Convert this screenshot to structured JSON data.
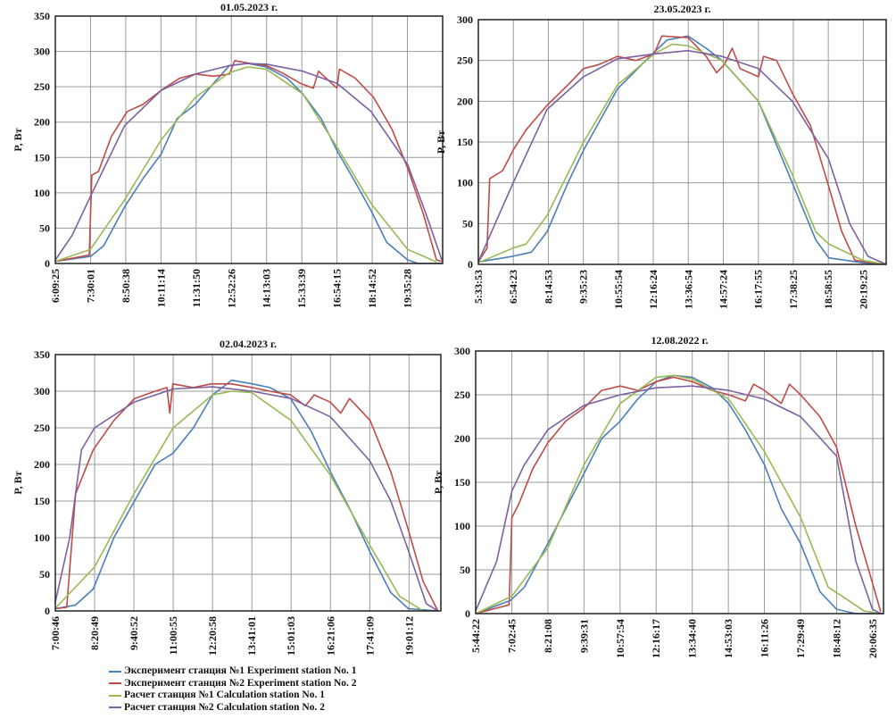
{
  "colors": {
    "exp1": "#4a7ebb",
    "exp2": "#be4b48",
    "calc1": "#98b954",
    "calc2": "#7d60a0"
  },
  "legend": [
    {
      "key": "exp1",
      "label": "Эксперимент станция №1 Experiment station No. 1"
    },
    {
      "key": "exp2",
      "label": "Эксперимент станция №2 Experiment station No. 2"
    },
    {
      "key": "calc1",
      "label": "Расчет станция №1 Calculation station No. 1"
    },
    {
      "key": "calc2",
      "label": "Расчет станция №2 Calculation station No. 2"
    }
  ],
  "chart_data": [
    {
      "type": "line",
      "title": "01.05.2023 г.",
      "xlabel": "",
      "ylabel": "P, Вт",
      "ylim": [
        0,
        350
      ],
      "yticks": [
        0,
        50,
        100,
        150,
        200,
        250,
        300,
        350
      ],
      "grid": true,
      "xlim_hours": [
        6.157,
        20.935
      ],
      "xtick_labels": [
        "6:09:25",
        "7:30:01",
        "8:50:38",
        "10:11:14",
        "11:31:50",
        "12:52:26",
        "14:13:03",
        "15:33:39",
        "16:54:15",
        "18:14:52",
        "19:35:28"
      ],
      "xtick_hours": [
        6.157,
        7.5,
        8.844,
        10.187,
        11.531,
        12.874,
        14.218,
        15.561,
        16.904,
        18.248,
        19.591
      ],
      "series": [
        {
          "key": "exp1",
          "x": [
            6.16,
            7.5,
            8.0,
            8.8,
            9.5,
            10.2,
            10.8,
            11.5,
            12.2,
            12.8,
            13.5,
            14.2,
            15.0,
            15.6,
            16.3,
            16.9,
            17.6,
            18.2,
            18.8,
            19.6,
            20.0,
            20.9
          ],
          "y": [
            3,
            10,
            25,
            80,
            120,
            155,
            205,
            225,
            255,
            280,
            283,
            278,
            262,
            240,
            205,
            160,
            115,
            75,
            30,
            5,
            0,
            0
          ]
        },
        {
          "key": "exp2",
          "x": [
            6.16,
            7.45,
            7.55,
            7.8,
            8.3,
            8.9,
            9.5,
            10.2,
            10.9,
            11.5,
            12.2,
            12.8,
            13.0,
            13.6,
            14.2,
            14.8,
            15.5,
            16.0,
            16.2,
            16.9,
            17.0,
            17.6,
            18.3,
            19.0,
            19.6,
            20.2,
            20.7,
            20.9
          ],
          "y": [
            3,
            12,
            125,
            130,
            180,
            215,
            225,
            245,
            262,
            268,
            265,
            268,
            287,
            283,
            280,
            270,
            255,
            248,
            272,
            248,
            275,
            262,
            235,
            190,
            135,
            70,
            5,
            3
          ]
        },
        {
          "key": "calc1",
          "x": [
            6.16,
            7.5,
            8.8,
            10.2,
            11.5,
            12.8,
            13.5,
            14.2,
            15.6,
            16.9,
            18.2,
            19.6,
            20.7
          ],
          "y": [
            3,
            20,
            90,
            175,
            235,
            270,
            278,
            275,
            240,
            165,
            85,
            20,
            2
          ]
        },
        {
          "key": "calc2",
          "x": [
            6.16,
            6.8,
            7.5,
            8.8,
            10.2,
            11.5,
            12.8,
            13.5,
            14.2,
            15.6,
            16.9,
            18.2,
            19.6,
            20.3,
            20.9
          ],
          "y": [
            5,
            40,
            95,
            195,
            245,
            268,
            280,
            283,
            282,
            272,
            255,
            215,
            140,
            70,
            5
          ]
        }
      ]
    },
    {
      "type": "line",
      "title": "23.05.2023 г.",
      "xlabel": "",
      "ylabel": "P, Вт",
      "ylim": [
        0,
        300
      ],
      "yticks": [
        0,
        50,
        100,
        150,
        200,
        250,
        300
      ],
      "grid": true,
      "xlim_hours": [
        5.565,
        21.2
      ],
      "xtick_labels": [
        "5:33:53",
        "6:54:23",
        "8:14:53",
        "9:35:23",
        "10:55:54",
        "12:16:24",
        "13:36:54",
        "14:57:24",
        "16:17:55",
        "17:38:25",
        "18:58:55",
        "20:19:25"
      ],
      "xtick_hours": [
        5.565,
        6.906,
        8.248,
        9.59,
        10.932,
        12.273,
        13.615,
        14.957,
        16.299,
        17.64,
        18.982,
        20.324
      ],
      "series": [
        {
          "key": "exp1",
          "x": [
            5.56,
            6.9,
            7.6,
            8.2,
            9.0,
            9.6,
            10.9,
            12.3,
            12.8,
            13.6,
            14.3,
            14.9,
            16.3,
            17.6,
            18.5,
            19.0,
            20.3,
            21.2
          ],
          "y": [
            3,
            10,
            15,
            40,
            100,
            140,
            215,
            260,
            275,
            280,
            265,
            250,
            200,
            100,
            30,
            8,
            2,
            0
          ]
        },
        {
          "key": "exp2",
          "x": [
            5.56,
            5.9,
            6.0,
            6.5,
            6.9,
            7.4,
            8.2,
            9.0,
            9.6,
            10.2,
            10.9,
            11.6,
            12.3,
            12.6,
            13.6,
            14.3,
            14.7,
            15.0,
            15.3,
            15.6,
            16.3,
            16.5,
            17.0,
            17.6,
            18.3,
            19.0,
            19.5,
            20.0,
            21.2
          ],
          "y": [
            3,
            20,
            105,
            115,
            140,
            165,
            195,
            220,
            240,
            245,
            255,
            250,
            258,
            280,
            278,
            255,
            235,
            245,
            265,
            240,
            230,
            255,
            250,
            210,
            170,
            95,
            40,
            5,
            0
          ]
        },
        {
          "key": "calc1",
          "x": [
            5.56,
            6.9,
            7.4,
            8.2,
            9.6,
            10.9,
            12.3,
            13.0,
            13.6,
            14.9,
            16.3,
            17.6,
            18.5,
            19.0,
            20.3,
            21.2
          ],
          "y": [
            2,
            20,
            25,
            60,
            150,
            220,
            258,
            270,
            268,
            250,
            200,
            110,
            40,
            25,
            5,
            0
          ]
        },
        {
          "key": "calc2",
          "x": [
            5.56,
            6.9,
            8.2,
            9.6,
            10.9,
            12.3,
            13.6,
            14.9,
            16.3,
            17.6,
            18.98,
            19.8,
            20.5,
            21.2
          ],
          "y": [
            3,
            100,
            190,
            230,
            252,
            258,
            262,
            255,
            240,
            200,
            130,
            50,
            10,
            0
          ]
        }
      ]
    },
    {
      "type": "line",
      "title": "02.04.2023 г.",
      "xlabel": "",
      "ylabel": "P, Вт",
      "ylim": [
        0,
        350
      ],
      "yticks": [
        0,
        50,
        100,
        150,
        200,
        250,
        300,
        350
      ],
      "grid": true,
      "xlim_hours": [
        7.013,
        20.1
      ],
      "xtick_labels": [
        "7:00:46",
        "8:20:49",
        "9:40:52",
        "11:00:55",
        "12:20:58",
        "13:41:01",
        "15:01:03",
        "16:21:06",
        "17:41:09",
        "19:01:12"
      ],
      "xtick_hours": [
        7.013,
        8.347,
        9.681,
        11.015,
        12.349,
        13.684,
        15.018,
        16.352,
        17.686,
        19.02
      ],
      "series": [
        {
          "key": "exp1",
          "x": [
            7.0,
            7.7,
            8.3,
            9.0,
            9.7,
            10.4,
            11.0,
            11.7,
            12.35,
            13.0,
            13.7,
            14.3,
            15.0,
            15.7,
            16.35,
            17.0,
            17.7,
            18.4,
            19.0,
            20.0
          ],
          "y": [
            3,
            8,
            30,
            100,
            150,
            200,
            215,
            250,
            295,
            315,
            310,
            305,
            290,
            245,
            190,
            140,
            80,
            25,
            3,
            0
          ]
        },
        {
          "key": "exp2",
          "x": [
            7.0,
            7.4,
            7.7,
            8.3,
            9.0,
            9.7,
            10.4,
            10.8,
            10.9,
            11.0,
            11.7,
            12.3,
            13.0,
            13.7,
            14.3,
            15.0,
            15.5,
            15.8,
            16.35,
            16.7,
            17.0,
            17.7,
            18.4,
            19.0,
            19.5,
            20.0
          ],
          "y": [
            3,
            5,
            160,
            220,
            260,
            290,
            300,
            305,
            270,
            310,
            305,
            310,
            310,
            305,
            300,
            295,
            280,
            295,
            285,
            270,
            290,
            260,
            190,
            110,
            40,
            0
          ]
        },
        {
          "key": "calc1",
          "x": [
            7.0,
            8.347,
            9.681,
            11.015,
            12.35,
            13.0,
            13.684,
            15.018,
            16.352,
            17.686,
            18.7,
            19.5
          ],
          "y": [
            3,
            60,
            160,
            250,
            295,
            300,
            298,
            260,
            185,
            90,
            20,
            0
          ]
        },
        {
          "key": "calc2",
          "x": [
            7.0,
            7.5,
            7.9,
            8.347,
            9.681,
            11.015,
            12.35,
            13.684,
            15.018,
            16.352,
            17.686,
            18.4,
            19.02,
            19.6,
            20.0
          ],
          "y": [
            10,
            100,
            220,
            250,
            285,
            303,
            306,
            300,
            290,
            265,
            205,
            150,
            80,
            10,
            0
          ]
        }
      ]
    },
    {
      "type": "line",
      "title": "12.08.2022 г.",
      "xlabel": "",
      "ylabel": "P, Вт",
      "ylim": [
        0,
        300
      ],
      "yticks": [
        0,
        50,
        100,
        150,
        200,
        250,
        300
      ],
      "grid": true,
      "xlim_hours": [
        5.739,
        20.5
      ],
      "xtick_labels": [
        "5:44:22",
        "7:02:45",
        "8:21:08",
        "9:39:31",
        "10:57:54",
        "12:16:17",
        "13:34:40",
        "14:53:03",
        "16:11:26",
        "17:29:49",
        "18:48:12",
        "20:06:35"
      ],
      "xtick_hours": [
        5.739,
        7.046,
        8.352,
        9.659,
        10.965,
        12.271,
        13.578,
        14.884,
        16.19,
        17.497,
        18.803,
        20.11
      ],
      "series": [
        {
          "key": "exp1",
          "x": [
            5.74,
            7.0,
            7.5,
            8.35,
            9.66,
            10.3,
            10.97,
            11.6,
            12.27,
            12.9,
            13.58,
            14.3,
            14.9,
            15.5,
            16.19,
            16.8,
            17.5,
            18.2,
            18.8,
            19.5,
            20.5
          ],
          "y": [
            0,
            15,
            30,
            80,
            160,
            200,
            220,
            245,
            265,
            272,
            270,
            258,
            240,
            210,
            170,
            120,
            80,
            25,
            5,
            0,
            0
          ]
        },
        {
          "key": "exp2",
          "x": [
            5.74,
            6.95,
            7.05,
            7.3,
            7.8,
            8.35,
            9.0,
            9.66,
            10.3,
            10.97,
            11.6,
            12.27,
            12.9,
            13.58,
            14.3,
            14.9,
            15.5,
            15.8,
            16.19,
            16.8,
            17.1,
            17.5,
            18.2,
            18.8,
            19.5,
            20.1,
            20.4
          ],
          "y": [
            0,
            10,
            110,
            125,
            165,
            195,
            220,
            235,
            255,
            260,
            255,
            265,
            270,
            265,
            255,
            250,
            243,
            262,
            255,
            240,
            262,
            250,
            225,
            190,
            100,
            35,
            2
          ]
        },
        {
          "key": "calc1",
          "x": [
            5.74,
            7.05,
            8.35,
            9.66,
            10.97,
            12.27,
            12.9,
            13.58,
            14.9,
            16.19,
            17.5,
            18.5,
            19.0,
            19.8,
            20.4
          ],
          "y": [
            0,
            20,
            75,
            170,
            240,
            270,
            272,
            268,
            245,
            185,
            110,
            30,
            20,
            3,
            0
          ]
        },
        {
          "key": "calc2",
          "x": [
            5.74,
            6.5,
            7.05,
            7.5,
            8.35,
            9.66,
            10.97,
            12.27,
            13.58,
            14.9,
            16.19,
            17.5,
            18.8,
            19.5,
            20.1,
            20.4
          ],
          "y": [
            3,
            60,
            140,
            170,
            210,
            238,
            250,
            258,
            260,
            255,
            245,
            225,
            180,
            60,
            5,
            0
          ]
        }
      ]
    }
  ]
}
